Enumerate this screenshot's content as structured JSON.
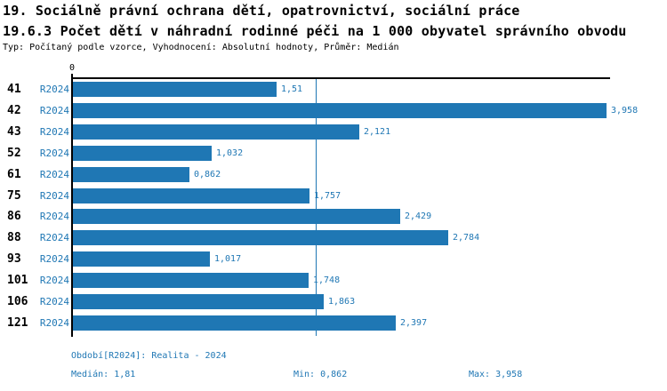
{
  "header": {
    "title_line1": "19. Sociálně právní ochrana dětí, opatrovnictví, sociální práce",
    "title_line2": "19.6.3 Počet dětí v náhradní rodinné péči na 1 000 obyvatel správního obvodu",
    "subtitle": "Typ: Počítaný podle vzorce, Vyhodnocení: Absolutní hodnoty, Průměr: Medián"
  },
  "axis": {
    "zero_label": "0"
  },
  "chart_data": {
    "type": "bar",
    "orientation": "horizontal",
    "title": "19.6.3 Počet dětí v náhradní rodinné péči na 1 000 obyvatel správního obvodu",
    "categories": [
      "41",
      "42",
      "43",
      "52",
      "61",
      "75",
      "86",
      "88",
      "93",
      "101",
      "106",
      "121"
    ],
    "series": [
      {
        "name": "R2024",
        "values": [
          1.51,
          3.958,
          2.121,
          1.032,
          0.862,
          1.757,
          2.429,
          2.784,
          1.017,
          1.748,
          1.863,
          2.397
        ]
      }
    ],
    "value_labels": [
      "1,51",
      "3,958",
      "2,121",
      "1,032",
      "0,862",
      "1,757",
      "2,429",
      "2,784",
      "1,017",
      "1,748",
      "1,863",
      "2,397"
    ],
    "xlabel": "",
    "ylabel": "",
    "xlim": [
      0,
      3.99
    ],
    "grid": false,
    "median_line_value": 1.81,
    "median": 1.81,
    "min": 0.862,
    "max": 3.958,
    "bar_color": "#1f77b4",
    "label_color": "#1f77b4",
    "axis_color": "#000000"
  },
  "footer": {
    "period": {
      "label": "Období[R2024]:",
      "value": "Realita - 2024"
    },
    "median": {
      "label": "Medián:",
      "value": "1,81"
    },
    "min": {
      "label": "Min:",
      "value": "0,862"
    },
    "max": {
      "label": "Max:",
      "value": "3,958"
    }
  }
}
